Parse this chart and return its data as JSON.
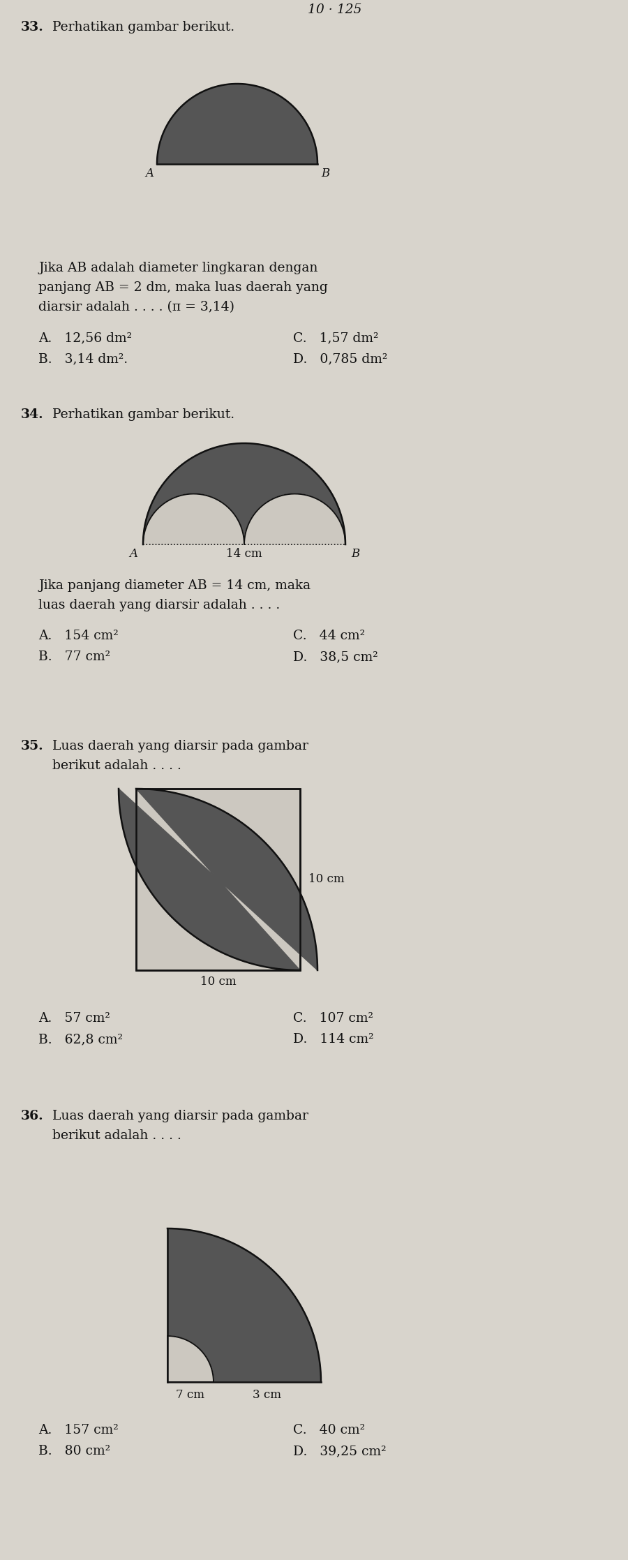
{
  "bg_color": "#d8d4cc",
  "text_color": "#111111",
  "shade_color": "#555555",
  "white_color": "#ccc8c0",
  "line_color": "#111111",
  "q33": {
    "number": "33.",
    "header": "Perhatikan gambar berikut.",
    "body1": "Jika AB adalah diameter lingkaran dengan",
    "body2": "panjang AB = 2 dm, maka luas daerah yang",
    "body3": "diarsir adalah . . . . (π = 3,14)",
    "A": "A.   12,56 dm²",
    "B": "B.   3,14 dm².",
    "C": "C.   1,57 dm²",
    "D": "D.   0,785 dm²"
  },
  "q34": {
    "number": "34.",
    "header": "Perhatikan gambar berikut.",
    "body1": "Jika panjang diameter AB = 14 cm, maka",
    "body2": "luas daerah yang diarsir adalah . . . .",
    "A": "A.   154 cm²",
    "B": "B.   77 cm²",
    "C": "C.   44 cm²",
    "D": "D.   38,5 cm²"
  },
  "q35": {
    "number": "35.",
    "header": "Luas daerah yang diarsir pada gambar",
    "header2": "berikut adalah . . . .",
    "dim_right": "10 cm",
    "dim_bottom": "10 cm",
    "A": "A.   57 cm²",
    "B": "B.   62,8 cm²",
    "C": "C.   107 cm²",
    "D": "D.   114 cm²"
  },
  "q36": {
    "number": "36.",
    "header": "Luas daerah yang diarsir pada gambar",
    "header2": "berikut adalah . . . .",
    "dim_label1": "7 cm",
    "dim_label2": "3 cm",
    "A": "A.   157 cm²",
    "B": "B.   80 cm²",
    "C": "C.   40 cm²",
    "D": "D.   39,25 cm²"
  }
}
